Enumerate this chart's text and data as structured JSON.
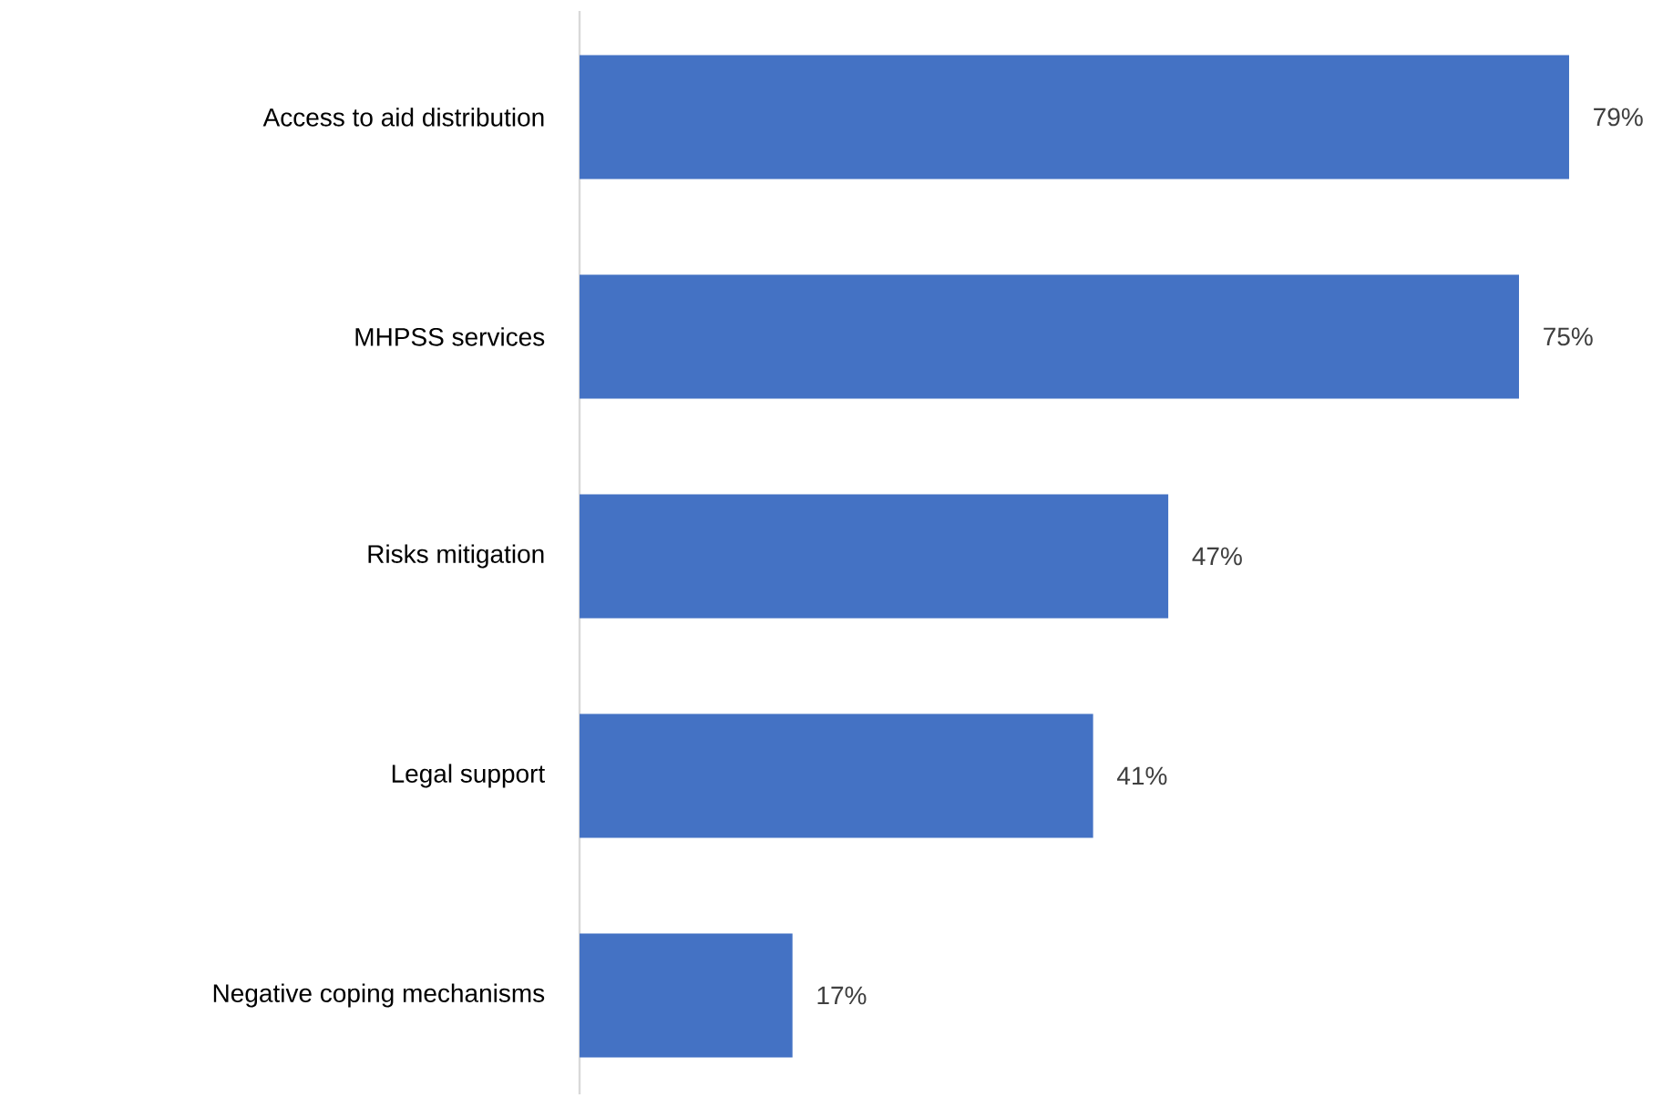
{
  "chart_data": {
    "type": "bar",
    "orientation": "horizontal",
    "categories": [
      "Access to aid distribution",
      "MHPSS services",
      "Risks mitigation",
      "Legal support",
      "Negative coping mechanisms"
    ],
    "values": [
      79,
      75,
      47,
      41,
      17
    ],
    "value_labels": [
      "79%",
      "75%",
      "47%",
      "41%",
      "17%"
    ],
    "color": "#4472c4"
  }
}
